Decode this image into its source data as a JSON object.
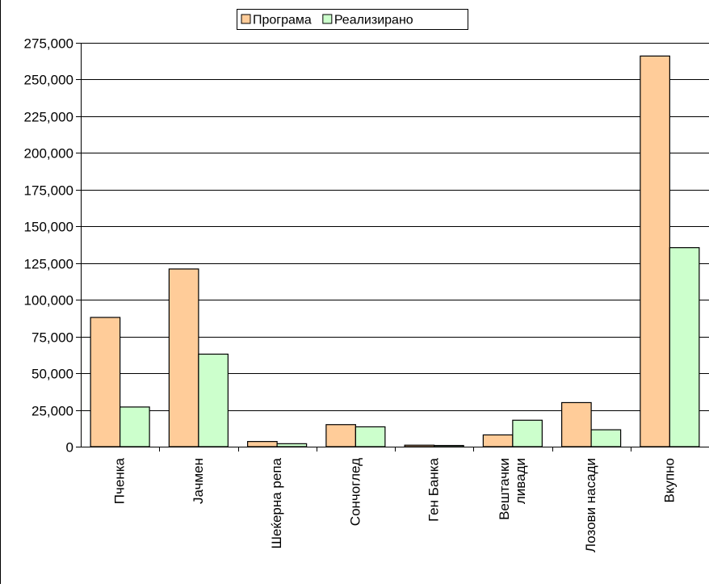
{
  "colors": {
    "programa": "#FFCC99",
    "realizirano": "#CCFFCC",
    "bar_border": "#000000",
    "grid": "#000000",
    "background": "#FFFFFF"
  },
  "chart_data": {
    "type": "bar",
    "title": "",
    "xlabel": "",
    "ylabel": "",
    "ylim": [
      0,
      275000
    ],
    "yticks": [
      0,
      25000,
      50000,
      75000,
      100000,
      125000,
      150000,
      175000,
      200000,
      225000,
      250000,
      275000
    ],
    "ytick_labels": [
      "0",
      "25,000",
      "50,000",
      "75,000",
      "100,000",
      "125,000",
      "150,000",
      "175,000",
      "200,000",
      "225,000",
      "250,000",
      "275,000"
    ],
    "grid": true,
    "legend_position": "top-center",
    "categories": [
      [
        "Пченка"
      ],
      [
        "Јачмен"
      ],
      [
        "Шеќерна репа"
      ],
      [
        "Сончоглед"
      ],
      [
        "Ген Банка"
      ],
      [
        "Вештачки",
        "ливади"
      ],
      [
        "Лозови насади"
      ],
      [
        "Вкупно"
      ]
    ],
    "series": [
      {
        "name": "Програма",
        "color": "#FFCC99",
        "values": [
          88000,
          121000,
          3500,
          15000,
          1000,
          8000,
          30000,
          266000
        ]
      },
      {
        "name": "Реализирано",
        "color": "#CCFFCC",
        "values": [
          27000,
          63000,
          2000,
          13500,
          800,
          18000,
          11500,
          135500
        ]
      }
    ]
  }
}
